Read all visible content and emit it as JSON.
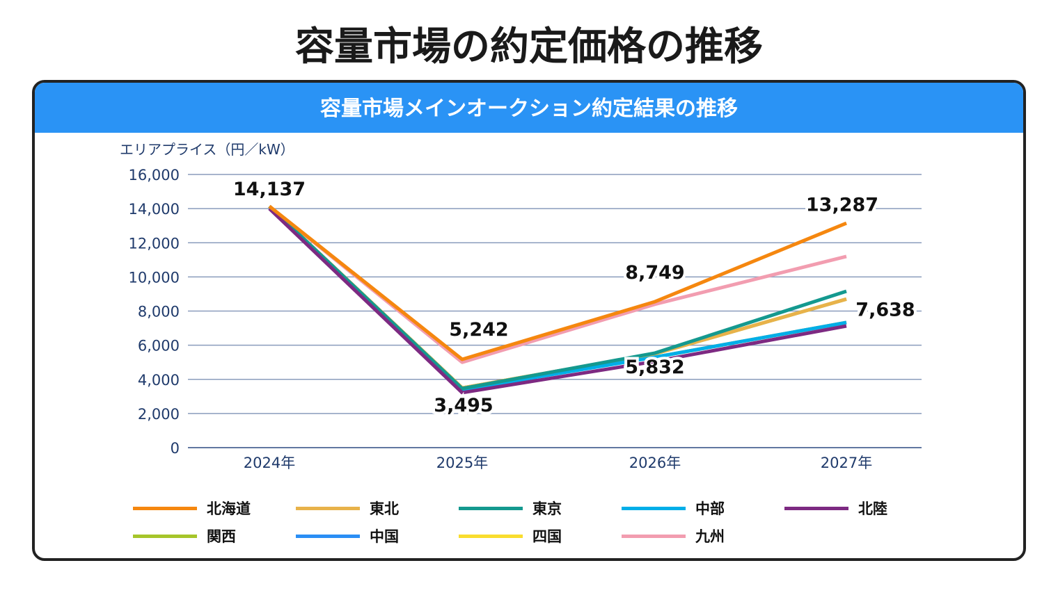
{
  "title": "容量市場の約定価格の推移",
  "chart_data": {
    "type": "line",
    "title": "容量市場メインオークション約定結果の推移",
    "ylabel": "エリアプライス（円／kW）",
    "xlabel": "",
    "categories": [
      "2024年",
      "2025年",
      "2026年",
      "2027年"
    ],
    "ylim": [
      0,
      16000
    ],
    "yticks": [
      "0",
      "2,000",
      "4,000",
      "6,000",
      "8,000",
      "10,000",
      "12,000",
      "14,000",
      "16,000"
    ],
    "grid": true,
    "legend": "bottom",
    "series": [
      {
        "name": "関西",
        "color": "#a6c52a",
        "values": [
          14137,
          3495,
          5500,
          8700
        ]
      },
      {
        "name": "中国",
        "color": "#2a8ef5",
        "values": [
          14137,
          3495,
          5300,
          7330
        ]
      },
      {
        "name": "四国",
        "color": "#f9dd2e",
        "values": [
          14137,
          3495,
          5300,
          7330
        ]
      },
      {
        "name": "九州",
        "color": "#f29db0",
        "values": [
          14137,
          5000,
          8400,
          11200
        ]
      },
      {
        "name": "東北",
        "color": "#e8b24a",
        "values": [
          14137,
          3495,
          5500,
          8700
        ]
      },
      {
        "name": "中部",
        "color": "#00aee8",
        "values": [
          14137,
          3400,
          5300,
          7330
        ]
      },
      {
        "name": "東京",
        "color": "#14998f",
        "values": [
          14137,
          3460,
          5540,
          9160
        ]
      },
      {
        "name": "北陸",
        "color": "#7d2a82",
        "values": [
          14000,
          3220,
          5050,
          7125
        ]
      },
      {
        "name": "北海道",
        "color": "#f5870f",
        "values": [
          14137,
          5170,
          8550,
          13150
        ]
      }
    ],
    "legend_order": [
      "北海道",
      "東北",
      "東京",
      "中部",
      "北陸",
      "関西",
      "中国",
      "四国",
      "九州"
    ],
    "annotations": [
      {
        "text": "14,137",
        "x": "2024年",
        "y": 14137
      },
      {
        "text": "5,242",
        "x": "2025年",
        "y": 5242
      },
      {
        "text": "3,495",
        "x": "2025年",
        "y": 3495
      },
      {
        "text": "8,749",
        "x": "2026年",
        "y": 8749
      },
      {
        "text": "5,832",
        "x": "2026年",
        "y": 5832
      },
      {
        "text": "13,287",
        "x": "2027年",
        "y": 13287
      },
      {
        "text": "7,638",
        "x": "2027年",
        "y": 7638
      }
    ]
  }
}
